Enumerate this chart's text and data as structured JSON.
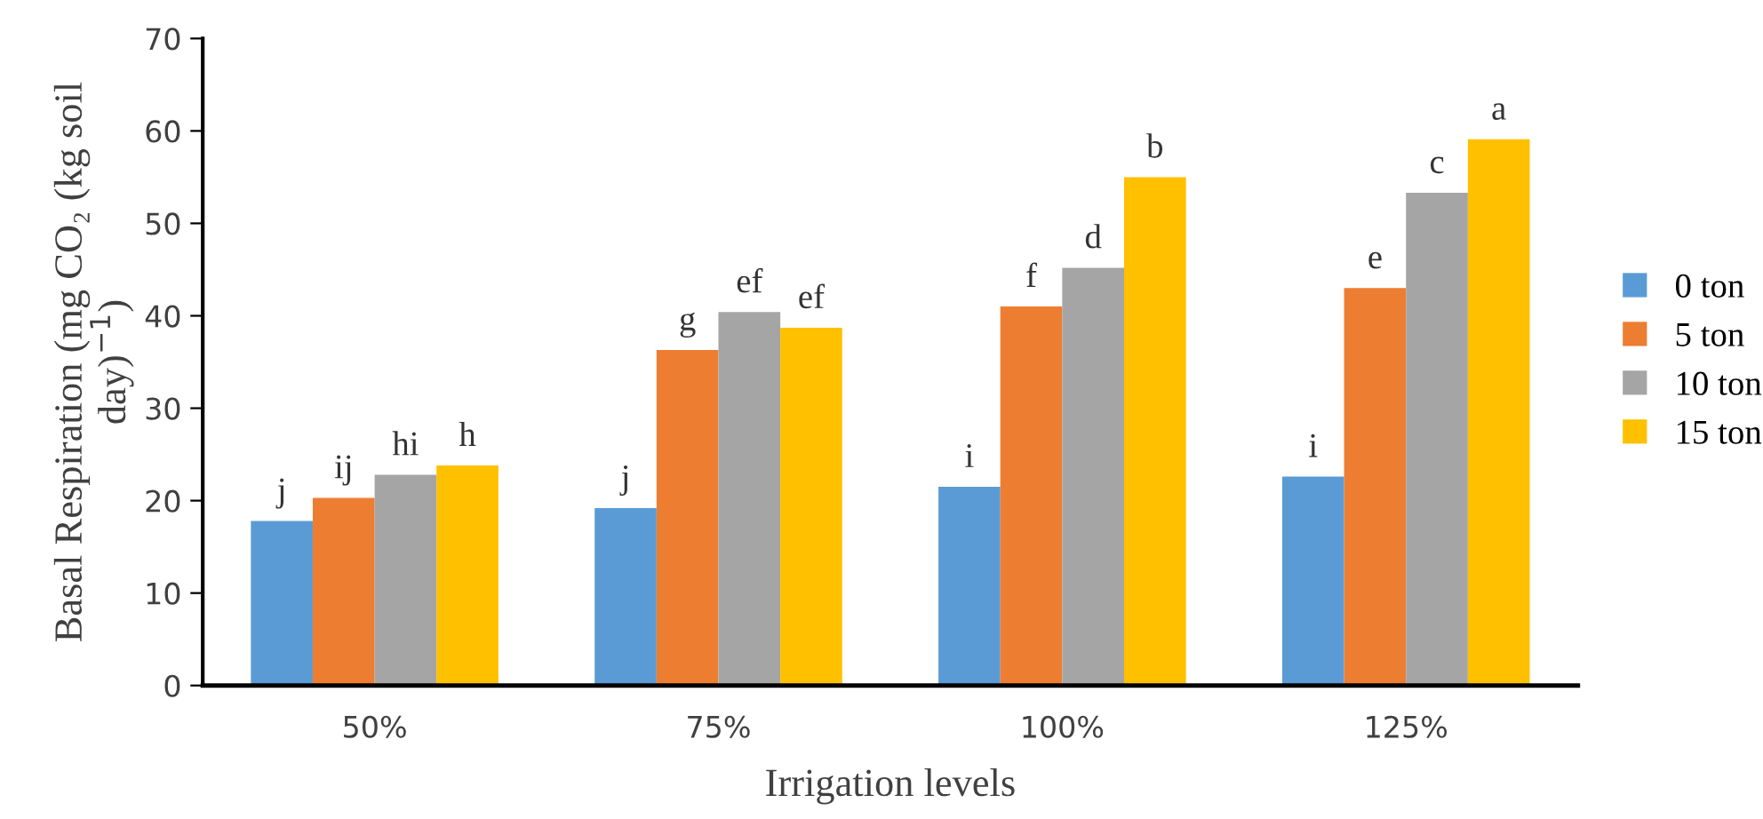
{
  "chart_data": {
    "type": "bar",
    "xlabel": "Irrigation levels",
    "ylabel": "Basal Respiration (mg CO₂ (kg soil\nday)$^{−1}$)",
    "categories": [
      "50%",
      "75%",
      "100%",
      "125%"
    ],
    "series": [
      {
        "name": "0 ton",
        "color": "#5b9bd5",
        "values": [
          17.8,
          19.2,
          21.5,
          22.6
        ],
        "value_labels": [
          "j",
          "j",
          "i",
          "i"
        ]
      },
      {
        "name": "5 ton",
        "color": "#ed7d31",
        "values": [
          20.3,
          36.3,
          41.0,
          43.0
        ],
        "value_labels": [
          "ij",
          "g",
          "f",
          "e"
        ]
      },
      {
        "name": "10 ton",
        "color": "#a5a5a5",
        "values": [
          22.8,
          40.4,
          45.2,
          53.3
        ],
        "value_labels": [
          "hi",
          "ef",
          "d",
          "c"
        ]
      },
      {
        "name": "15 ton",
        "color": "#ffc000",
        "values": [
          23.8,
          38.7,
          55.0,
          59.1
        ],
        "value_labels": [
          "h",
          "ef",
          "b",
          "a"
        ]
      }
    ],
    "ylim": [
      0,
      70
    ],
    "yticks": [
      0,
      10,
      20,
      30,
      40,
      50,
      60,
      70
    ],
    "grid": false,
    "legend": "right"
  }
}
